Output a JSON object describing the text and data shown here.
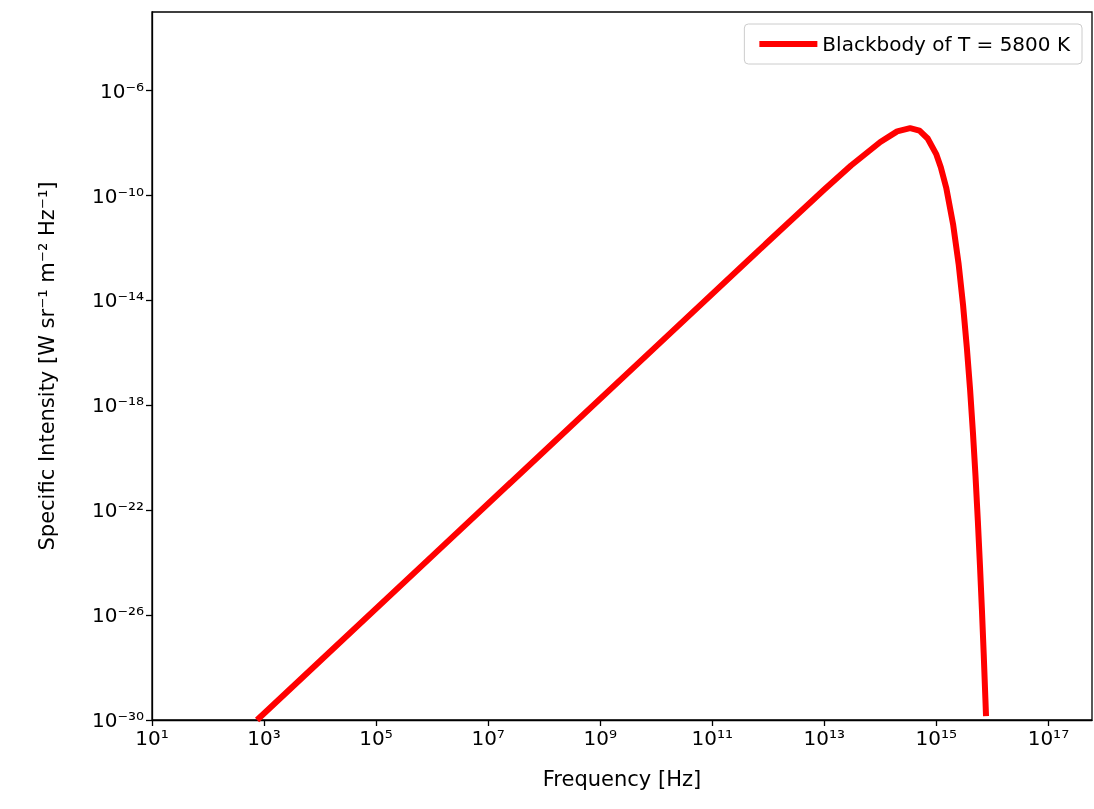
{
  "chart_data": {
    "type": "line",
    "xlabel": "Frequency [Hz]",
    "ylabel": "Specific Intensity [W sr⁻¹ m⁻² Hz⁻¹]",
    "log": "xy",
    "grid": false,
    "legend": "top right",
    "marker": "none",
    "line_style": "solid",
    "xlim": [
      10,
      6e+17
    ],
    "ylim": [
      1e-30,
      0.001
    ],
    "xticks": [
      {
        "value": 10,
        "label": "10¹"
      },
      {
        "value": 1000.0,
        "label": "10³"
      },
      {
        "value": 100000.0,
        "label": "10⁵"
      },
      {
        "value": 10000000.0,
        "label": "10⁷"
      },
      {
        "value": 1000000000.0,
        "label": "10⁹"
      },
      {
        "value": 100000000000.0,
        "label": "10¹¹"
      },
      {
        "value": 10000000000000.0,
        "label": "10¹³"
      },
      {
        "value": 1000000000000000.0,
        "label": "10¹⁵"
      },
      {
        "value": 1e+17,
        "label": "10¹⁷"
      }
    ],
    "yticks": [
      {
        "value": 1e-30,
        "label": "10⁻³⁰"
      },
      {
        "value": 1e-26,
        "label": "10⁻²⁶"
      },
      {
        "value": 1e-22,
        "label": "10⁻²²"
      },
      {
        "value": 1e-18,
        "label": "10⁻¹⁸"
      },
      {
        "value": 1e-14,
        "label": "10⁻¹⁴"
      },
      {
        "value": 1e-10,
        "label": "10⁻¹⁰"
      },
      {
        "value": 1e-06,
        "label": "10⁻⁶"
      }
    ],
    "series": [
      {
        "name": "Blackbody of T = 5800 K",
        "color": "#ff0000",
        "x": [
          750,
          10000.0,
          1000000.0,
          100000000.0,
          10000000000.0,
          1000000000000.0,
          10000000000000.0,
          30000000000000.0,
          100000000000000.0,
          200000000000000.0,
          340000000000000.0,
          500000000000000.0,
          700000000000000.0,
          1000000000000000.0,
          1200000000000000.0,
          1500000000000000.0,
          2000000000000000.0,
          2500000000000000.0,
          3000000000000000.0,
          3500000000000000.0,
          4000000000000000.0,
          4500000000000000.0,
          5000000000000000.0,
          5500000000000000.0,
          6000000000000000.0,
          6500000000000000.0,
          7000000000000000.0,
          7500000000000000.0,
          7700000000000000.0
        ],
        "values": [
          1e-30,
          1.78e-28,
          1.78e-24,
          1.78e-20,
          1.78e-16,
          1.77e-12,
          1.7e-10,
          1.4e-09,
          1.1e-08,
          2.8e-08,
          3.7e-08,
          3e-08,
          1.5e-08,
          3.7e-09,
          1.2e-09,
          2e-10,
          7.5e-12,
          2.4e-13,
          6.5e-15,
          1.6e-16,
          4e-18,
          9e-20,
          2e-21,
          4e-23,
          8e-25,
          1.7e-26,
          3.4e-28,
          6.6e-30,
          1.4e-30
        ]
      }
    ]
  }
}
